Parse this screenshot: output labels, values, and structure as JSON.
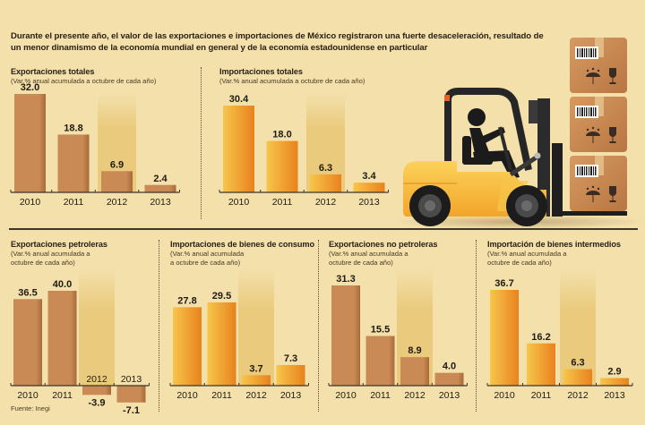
{
  "headline": "Durante el presente año, el valor de las exportaciones e importaciones de México registraron una fuerte desaceleración, resultado de un menor dinamismo de la economía mundial en general y de la economía estadounidense en particular",
  "source": "Fuente: Inegi",
  "colors": {
    "background": "#f3e0aa",
    "export_bar": "#c98a55",
    "export_bar_dark": "#a86a3a",
    "import_bar_light": "#f7c64a",
    "import_bar_dark": "#e8821e",
    "highlight_column": "#e9c878",
    "text": "#2a2118"
  },
  "chart_data": [
    {
      "id": "exportaciones-totales",
      "type": "bar",
      "title": "Exportaciones totales",
      "subtitle": [
        "(Var.% anual acumulada a octubre de cada año)"
      ],
      "categories": [
        "2010",
        "2011",
        "2012",
        "2013"
      ],
      "values": [
        32.0,
        18.8,
        6.9,
        2.4
      ],
      "labels": [
        "32.0",
        "18.8",
        "6.9",
        "2.4"
      ],
      "style": "export",
      "highlight_category": "2012",
      "ylim": [
        0,
        32.0
      ]
    },
    {
      "id": "importaciones-totales",
      "type": "bar",
      "title": "Importaciones totales",
      "subtitle": [
        "(Var.% anual acumulada a octubre de cada año)"
      ],
      "categories": [
        "2010",
        "2011",
        "2012",
        "2013"
      ],
      "values": [
        30.4,
        18.0,
        6.3,
        3.4
      ],
      "labels": [
        "30.4",
        "18.0",
        "6.3",
        "3.4"
      ],
      "style": "import",
      "highlight_category": "2012",
      "ylim": [
        0,
        32.0
      ]
    },
    {
      "id": "exportaciones-petroleras",
      "type": "bar",
      "title": "Exportaciones petroleras",
      "subtitle": [
        "(Var.% anual acumulada a",
        "octubre de cada año)"
      ],
      "categories": [
        "2010",
        "2011",
        "2012",
        "2013"
      ],
      "values": [
        36.5,
        40.0,
        -3.9,
        -7.1
      ],
      "labels": [
        "36.5",
        "40.0",
        "-3.9",
        "-7.1"
      ],
      "style": "export",
      "highlight_category": "2012",
      "ylim": [
        -7.1,
        40.0
      ]
    },
    {
      "id": "importaciones-bienes-consumo",
      "type": "bar",
      "title": "Importaciones de bienes de consumo",
      "subtitle": [
        "(Var.% anual acumulada",
        "a octubre de cada año)"
      ],
      "categories": [
        "2010",
        "2011",
        "2012",
        "2013"
      ],
      "values": [
        27.8,
        29.5,
        3.7,
        7.3
      ],
      "labels": [
        "27.8",
        "29.5",
        "3.7",
        "7.3"
      ],
      "style": "import",
      "highlight_category": "2012",
      "ylim": [
        0,
        40.0
      ]
    },
    {
      "id": "exportaciones-no-petroleras",
      "type": "bar",
      "title": "Exportaciones no petroleras",
      "subtitle": [
        "(Var.% anual acumulada a",
        "octubre de cada año)"
      ],
      "categories": [
        "2010",
        "2011",
        "2012",
        "2013"
      ],
      "values": [
        31.3,
        15.5,
        8.9,
        4.0
      ],
      "labels": [
        "31.3",
        "15.5",
        "8.9",
        "4.0"
      ],
      "style": "export",
      "highlight_category": "2012",
      "ylim": [
        0,
        31.3
      ]
    },
    {
      "id": "importacion-bienes-intermedios",
      "type": "bar",
      "title": "Importación de bienes intermedios",
      "subtitle": [
        "(Var.% anual acumulada a",
        "octubre de cada año)"
      ],
      "categories": [
        "2010",
        "2011",
        "2012",
        "2013"
      ],
      "values": [
        36.7,
        16.2,
        6.3,
        2.9
      ],
      "labels": [
        "36.7",
        "16.2",
        "6.3",
        "2.9"
      ],
      "style": "import",
      "highlight_category": "2012",
      "ylim": [
        0,
        36.7
      ]
    }
  ],
  "illustration": {
    "name": "forklift-with-boxes",
    "box_count": 3,
    "box_icons": [
      "barcode-icon",
      "keep-dry-umbrella-icon",
      "fragile-glass-icon"
    ]
  }
}
